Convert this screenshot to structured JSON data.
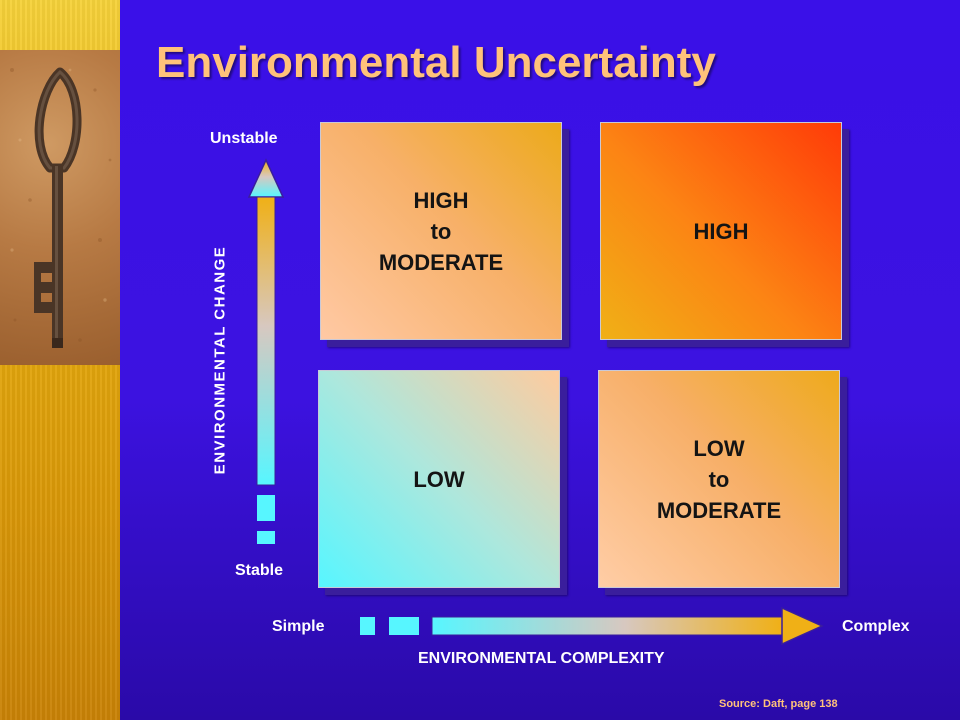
{
  "slide": {
    "title": "Environmental Uncertainty"
  },
  "vertical_axis": {
    "label": "ENVIRONMENTAL CHANGE",
    "top_label": "Unstable",
    "bottom_label": "Stable"
  },
  "horizontal_axis": {
    "label": "ENVIRONMENTAL COMPLEXITY",
    "left_label": "Simple",
    "right_label": "Complex"
  },
  "quadrants": {
    "top_left": "HIGH\nto\nMODERATE",
    "top_right": "HIGH",
    "bottom_left": "LOW",
    "bottom_right": "LOW\nto\nMODERATE"
  },
  "source": "Source: Daft, page 138",
  "colors": {
    "background": "#3a10e8",
    "title": "#ffc27a",
    "side_strip": "#e7ae10",
    "arrow_start": "#57f6ff",
    "arrow_end": "#f0b016"
  },
  "icons": {
    "decoration": "old-key-photo"
  }
}
